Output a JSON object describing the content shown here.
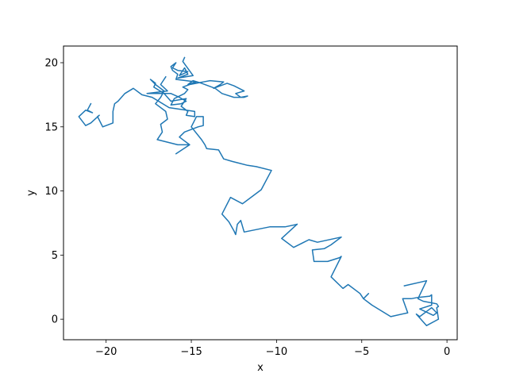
{
  "chart_data": {
    "type": "line",
    "title": "",
    "xlabel": "x",
    "ylabel": "y",
    "xlim": [
      -22.5,
      0.6
    ],
    "ylim": [
      -1.6,
      21.3
    ],
    "xticks": [
      -20,
      -15,
      -10,
      -5,
      0
    ],
    "yticks": [
      0,
      5,
      10,
      15,
      20
    ],
    "grid": false,
    "legend": "none",
    "series": [
      {
        "color": "#1f77b4",
        "x": [
          -8.8,
          -9.7,
          -9.0,
          -8.1,
          -7.6,
          -6.2,
          -6.8,
          -7.2,
          -7.9,
          -7.8,
          -7.0,
          -6.3,
          -6.2,
          -6.8,
          -6.1,
          -5.8,
          -5.1,
          -4.9,
          -4.6,
          -4.9,
          -4.6,
          -4.4,
          -3.3,
          -2.3,
          -2.6,
          -2.1,
          -1.7,
          -1.0,
          -0.9,
          -0.9,
          -1.6,
          -0.8,
          -0.6,
          -0.9,
          -1.1,
          -1.6,
          -1.8,
          -1.2,
          -0.5,
          -0.6,
          -0.5,
          -0.6,
          -1.4,
          -1.7,
          -1.2,
          -2.5
        ],
        "y": [
          7.4,
          6.3,
          5.6,
          6.2,
          6.0,
          6.4,
          5.8,
          5.5,
          5.4,
          4.5,
          4.5,
          4.8,
          4.9,
          3.3,
          2.4,
          2.7,
          2.0,
          1.6,
          2.0,
          1.6,
          1.3,
          1.1,
          0.2,
          0.5,
          1.6,
          1.6,
          1.7,
          1.8,
          1.9,
          1.1,
          0.8,
          0.3,
          0.5,
          0.9,
          0.7,
          0.2,
          0.4,
          -0.5,
          0.0,
          0.9,
          1.0,
          1.2,
          1.4,
          1.6,
          3.0,
          2.6
        ]
      },
      {
        "color": "#1f77b4",
        "x": [
          -8.8,
          -9.5,
          -10.4,
          -11.9,
          -12.1,
          -12.3,
          -12.4,
          -12.5,
          -12.8,
          -13.2,
          -12.7,
          -12.0,
          -10.9,
          -10.3,
          -11.2,
          -11.7,
          -12.3,
          -12.6,
          -13.1,
          -13.4,
          -14.1,
          -14.2,
          -14.4,
          -15.0,
          -14.7,
          -14.3,
          -14.3,
          -14.6,
          -15.4,
          -15.7,
          -15.1,
          -15.9,
          -15.1,
          -15.8,
          -17.0,
          -16.7,
          -16.8,
          -16.4,
          -16.5,
          -17.1,
          -16.8,
          -16.6,
          -17.1,
          -17.4,
          -17.1,
          -17.2,
          -16.6,
          -16.2,
          -15.3,
          -15.6,
          -15.2,
          -15.3,
          -14.8,
          -14.8,
          -16.3,
          -17.3,
          -17.9,
          -18.4,
          -18.9,
          -19.3,
          -19.5,
          -19.6,
          -19.6,
          -20.2,
          -20.5,
          -20.4,
          -20.9,
          -21.2,
          -21.6,
          -21.2,
          -20.8,
          -21.1,
          -20.9
        ],
        "y": [
          7.4,
          7.2,
          7.2,
          6.8,
          7.7,
          7.4,
          6.6,
          6.9,
          7.6,
          8.2,
          9.5,
          9.0,
          10.1,
          11.6,
          11.9,
          12.0,
          12.2,
          12.3,
          12.5,
          13.2,
          13.3,
          13.6,
          14.0,
          15.0,
          15.8,
          15.8,
          15.1,
          15.0,
          14.6,
          14.2,
          13.6,
          12.9,
          13.6,
          13.6,
          14.0,
          14.6,
          15.2,
          15.6,
          16.2,
          16.8,
          17.3,
          17.8,
          18.3,
          18.7,
          18.4,
          18.1,
          17.6,
          17.0,
          17.2,
          16.6,
          16.2,
          15.9,
          15.8,
          16.2,
          16.5,
          17.3,
          17.5,
          18.0,
          17.6,
          17.0,
          16.8,
          16.2,
          15.3,
          15.0,
          15.8,
          15.9,
          15.3,
          15.1,
          15.8,
          16.3,
          16.1,
          16.3,
          16.8
        ]
      },
      {
        "color": "#1f77b4",
        "x": [
          -16.5,
          -16.8,
          -16.4,
          -17.6,
          -17.0,
          -16.2,
          -15.7,
          -15.3,
          -15.6,
          -16.2,
          -16.0,
          -15.4,
          -15.2,
          -15.5,
          -15.1,
          -14.7,
          -14.3,
          -13.9,
          -13.1,
          -13.3,
          -13.7,
          -12.9,
          -12.5,
          -11.9,
          -12.4,
          -12.1,
          -11.7,
          -11.9,
          -12.5,
          -13.2,
          -13.6,
          -14.4,
          -14.9,
          -15.2,
          -14.7,
          -15.3,
          -15.9,
          -15.8,
          -16.1,
          -16.2,
          -15.9,
          -16.1,
          -15.8,
          -15.2,
          -15.7,
          -15.4,
          -15.2,
          -15.8,
          -14.9,
          -15.5,
          -15.4
        ],
        "y": [
          18.9,
          18.3,
          17.8,
          17.6,
          17.6,
          17.6,
          17.3,
          17.0,
          16.8,
          16.7,
          17.2,
          17.6,
          17.9,
          18.1,
          18.3,
          18.4,
          18.5,
          18.6,
          18.5,
          18.3,
          18.0,
          18.4,
          18.2,
          17.8,
          17.6,
          17.3,
          17.4,
          17.3,
          17.3,
          17.6,
          18.0,
          18.4,
          18.6,
          18.3,
          18.5,
          18.6,
          18.7,
          19.1,
          19.4,
          19.7,
          20.0,
          19.6,
          19.4,
          19.3,
          19.0,
          19.6,
          19.1,
          18.8,
          19.0,
          20.1,
          20.4
        ]
      }
    ]
  }
}
